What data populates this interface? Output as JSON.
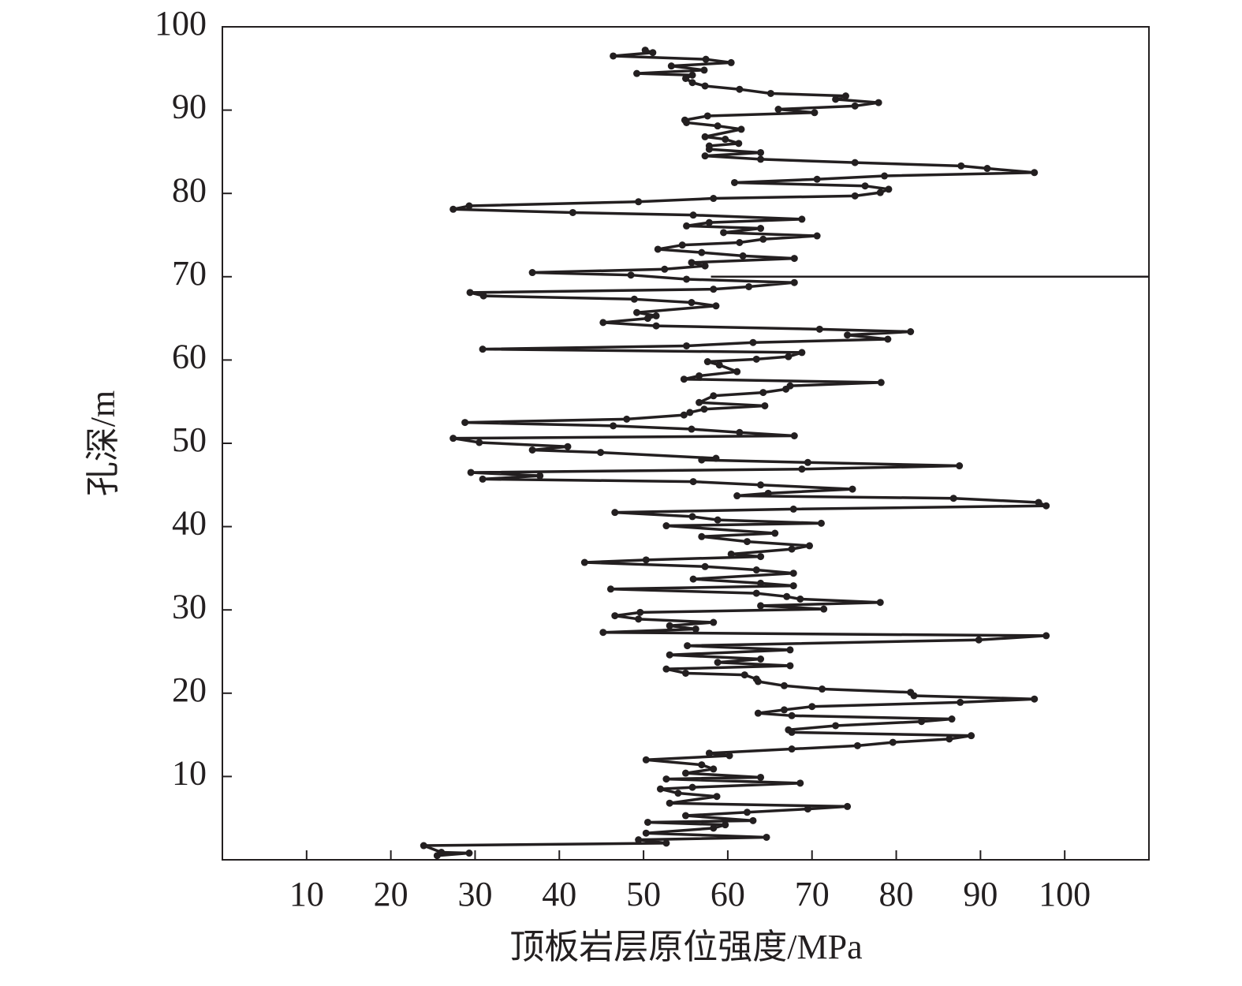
{
  "chart_data": {
    "type": "line",
    "xlabel": "顶板岩层原位强度/MPa",
    "ylabel": "孔深/m",
    "color": "#231f20",
    "markers": true,
    "xlim": [
      0,
      110
    ],
    "ylim": [
      0,
      100
    ],
    "xticks": [
      10,
      20,
      30,
      40,
      50,
      60,
      70,
      80,
      90,
      100
    ],
    "yticks": [
      10,
      20,
      30,
      40,
      50,
      60,
      70,
      80,
      90,
      100
    ],
    "hline": {
      "y": 70,
      "x": [
        58,
        110
      ]
    },
    "x": [
      25.5,
      29.3,
      26,
      23.9,
      52.7,
      49.4,
      64.6,
      50.3,
      58.3,
      59.7,
      50.5,
      63,
      55,
      62.3,
      69.5,
      74.2,
      53.1,
      58.7,
      54.1,
      52,
      55.8,
      68.6,
      52.7,
      63.9,
      55,
      58.3,
      56.9,
      50.3,
      60.2,
      57.8,
      67.6,
      75.4,
      79.6,
      86.3,
      88.9,
      67.6,
      67.2,
      72.8,
      83,
      86.6,
      67.6,
      63.6,
      66.7,
      70,
      87.6,
      96.4,
      82.1,
      81.7,
      71.2,
      66.7,
      63.6,
      63.4,
      62,
      55,
      52.7,
      67.4,
      58.8,
      63.9,
      53.1,
      67.4,
      55.2,
      89.8,
      97.8,
      45.2,
      56.2,
      53.1,
      58.3,
      49.4,
      46.6,
      49.6,
      71.4,
      63.9,
      78.1,
      68.6,
      67,
      63.4,
      46.1,
      67.8,
      63.9,
      55.9,
      67.8,
      63.4,
      57.3,
      43,
      50.3,
      63.9,
      60.4,
      67.6,
      69.7,
      62.3,
      56.9,
      65.6,
      52.7,
      71.1,
      58.8,
      55.8,
      46.6,
      67.8,
      97.8,
      96.9,
      86.8,
      61.1,
      64.8,
      74.8,
      63.9,
      55.9,
      30.9,
      37.7,
      29.5,
      68.8,
      87.5,
      69.5,
      56.9,
      58.6,
      44.9,
      36.8,
      41,
      30.5,
      27.4,
      67.9,
      61.4,
      55.7,
      46.4,
      28.8,
      48,
      54.8,
      55.5,
      57.2,
      64.4,
      56.6,
      58.3,
      64.2,
      66.9,
      67.4,
      78.2,
      54.8,
      56.6,
      61.1,
      59,
      57.6,
      63.4,
      67.2,
      68.8,
      30.9,
      55.1,
      63,
      79,
      74.2,
      81.7,
      70.9,
      51.5,
      45.2,
      50.5,
      51.5,
      49.2,
      58.6,
      55.7,
      48.9,
      31,
      29.4,
      58.3,
      62.5,
      67.9,
      55.1,
      48.5,
      36.8,
      52.5,
      57.3,
      55.7,
      67.9,
      61.8,
      56.9,
      51.7,
      54.6,
      61.4,
      64.2,
      70.6,
      59.5,
      63.9,
      55.1,
      57.8,
      68.8,
      55.9,
      41.6,
      27.4,
      29.3,
      49.4,
      58.3,
      75.1,
      78.1,
      79.1,
      76.3,
      60.8,
      70.6,
      78.6,
      96.4,
      90.8,
      87.7,
      75.1,
      63.9,
      57.3,
      63.9,
      57.8,
      57.8,
      61.3,
      59.7,
      57.3,
      61.6,
      58.8,
      55.1,
      54.9,
      57.6,
      70.3,
      66,
      75.1,
      77.9,
      72.8,
      74,
      65.1,
      61.4,
      57.3,
      55.8,
      55,
      55.8,
      49.2,
      57.2,
      53.3,
      60.4,
      57.4,
      46.4,
      51.1,
      50.2
    ],
    "y": [
      0.5,
      0.8,
      0.9,
      1.7,
      2,
      2.4,
      2.7,
      3.2,
      3.8,
      4.2,
      4.5,
      4.7,
      5.3,
      5.7,
      6.1,
      6.4,
      6.8,
      7.6,
      8,
      8.5,
      8.7,
      9.2,
      9.7,
      9.9,
      10.4,
      10.9,
      11.4,
      12,
      12.5,
      12.8,
      13.3,
      13.7,
      14.1,
      14.5,
      14.9,
      15.3,
      15.6,
      16.1,
      16.6,
      16.9,
      17.3,
      17.6,
      18,
      18.4,
      18.9,
      19.3,
      19.7,
      20.1,
      20.5,
      20.9,
      21.4,
      21.7,
      22.2,
      22.4,
      22.9,
      23.3,
      23.7,
      24.1,
      24.6,
      25.2,
      25.7,
      26.4,
      26.9,
      27.3,
      27.7,
      28.1,
      28.5,
      28.9,
      29.3,
      29.7,
      30.1,
      30.5,
      30.9,
      31.3,
      31.6,
      32,
      32.5,
      32.9,
      33.2,
      33.7,
      34.4,
      34.8,
      35.2,
      35.7,
      36,
      36.4,
      36.7,
      37.3,
      37.7,
      38.2,
      38.8,
      39.2,
      40.1,
      40.4,
      40.8,
      41.2,
      41.7,
      42.1,
      42.5,
      42.9,
      43.4,
      43.7,
      44,
      44.5,
      45,
      45.4,
      45.7,
      46.1,
      46.5,
      46.9,
      47.3,
      47.7,
      48,
      48.2,
      48.9,
      49.2,
      49.6,
      50.1,
      50.6,
      50.9,
      51.3,
      51.7,
      52.1,
      52.5,
      52.9,
      53.4,
      53.7,
      54.1,
      54.5,
      54.9,
      55.7,
      56.1,
      56.5,
      56.9,
      57.3,
      57.7,
      58.1,
      58.6,
      59.4,
      59.8,
      60.1,
      60.4,
      60.9,
      61.3,
      61.7,
      62.1,
      62.5,
      63,
      63.4,
      63.7,
      64.1,
      64.5,
      65,
      65.3,
      65.7,
      66.5,
      66.9,
      67.3,
      67.7,
      68.1,
      68.5,
      68.8,
      69.3,
      69.7,
      70.2,
      70.5,
      70.9,
      71.3,
      71.7,
      72.2,
      72.5,
      72.9,
      73.3,
      73.8,
      74.1,
      74.5,
      74.9,
      75.3,
      75.8,
      76.1,
      76.5,
      76.9,
      77.4,
      77.7,
      78.1,
      78.5,
      79,
      79.4,
      79.7,
      80.1,
      80.5,
      80.9,
      81.3,
      81.7,
      82.1,
      82.5,
      83,
      83.3,
      83.7,
      84.1,
      84.5,
      84.9,
      85.3,
      85.7,
      86,
      86.5,
      86.8,
      87.7,
      88.1,
      88.5,
      88.8,
      89.3,
      89.7,
      90.1,
      90.5,
      90.9,
      91.3,
      91.7,
      92,
      92.5,
      92.9,
      93.3,
      93.8,
      94.2,
      94.4,
      94.8,
      95.3,
      95.7,
      96.1,
      96.5,
      96.9,
      97.2
    ]
  }
}
